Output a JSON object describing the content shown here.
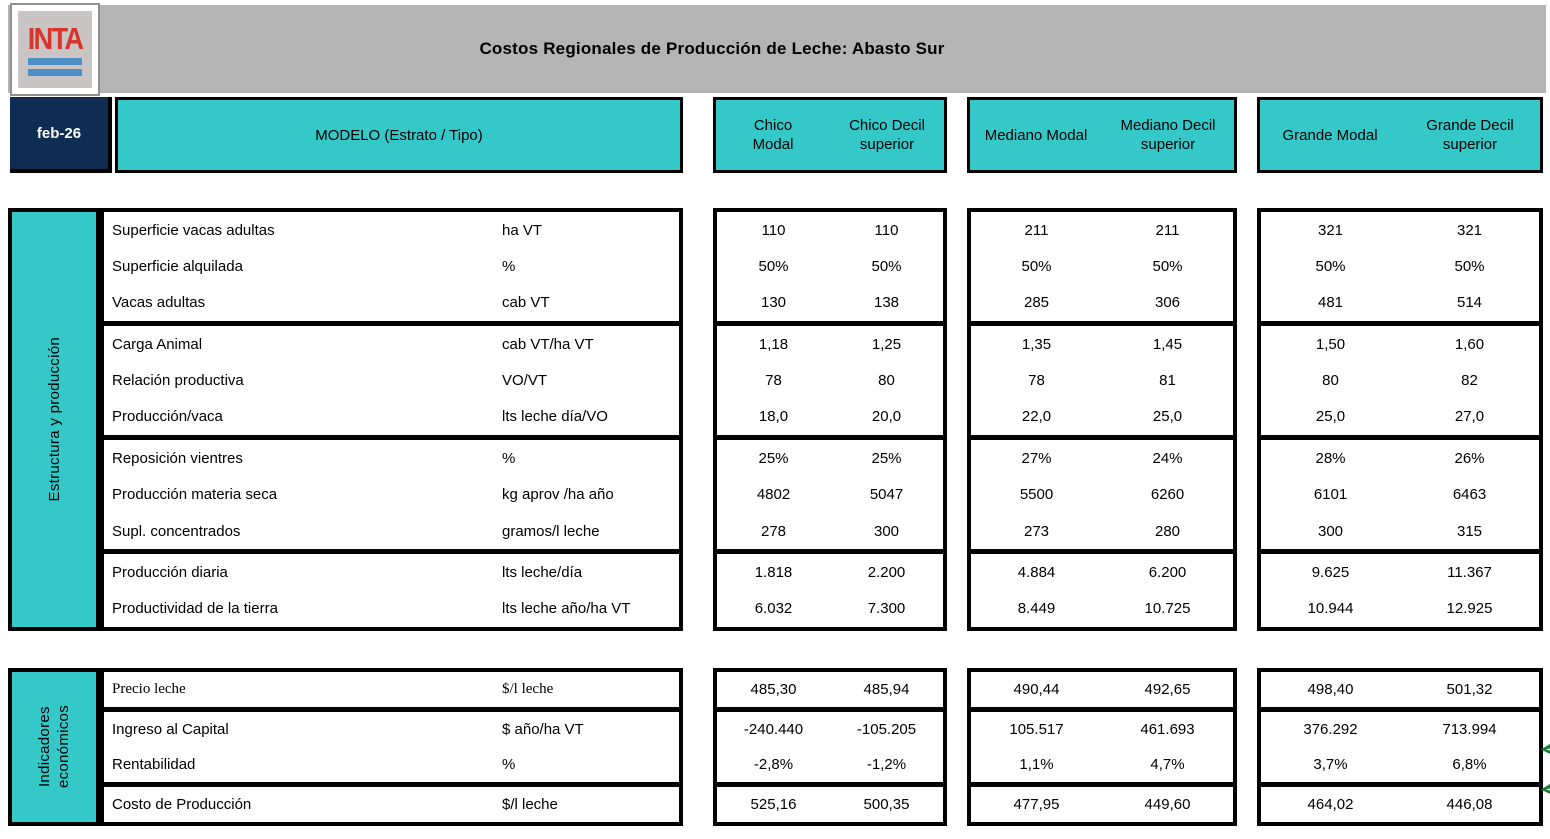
{
  "header": {
    "logo_text": "INTA",
    "title": "Costos Regionales de Producción de Leche: Abasto Sur",
    "date": "feb-26",
    "model_label": "MODELO (Estrato / Tipo)",
    "col_groups": [
      {
        "modal": "Chico Modal",
        "decil": "Chico Decil superior"
      },
      {
        "modal": "Mediano Modal",
        "decil": "Mediano Decil superior"
      },
      {
        "modal": "Grande Modal",
        "decil": "Grande Decil superior"
      }
    ]
  },
  "colors": {
    "teal": "#35c8c8",
    "navy": "#0f2d52",
    "gray_band": "#b4b4b4",
    "logo_red": "#d9342b",
    "logo_blue": "#4d8fc4",
    "green_mark": "#217a3c"
  },
  "sections": [
    {
      "title": "Estructura y producción",
      "groups": [
        {
          "rows": [
            {
              "label": "Superficie vacas adultas",
              "unit": "ha VT",
              "values": [
                "110",
                "110",
                "211",
                "211",
                "321",
                "321"
              ]
            },
            {
              "label": "Superficie alquilada",
              "unit": "%",
              "values": [
                "50%",
                "50%",
                "50%",
                "50%",
                "50%",
                "50%"
              ]
            },
            {
              "label": "Vacas adultas",
              "unit": "cab VT",
              "values": [
                "130",
                "138",
                "285",
                "306",
                "481",
                "514"
              ]
            }
          ]
        },
        {
          "rows": [
            {
              "label": "Carga Animal",
              "unit": "cab VT/ha VT",
              "values": [
                "1,18",
                "1,25",
                "1,35",
                "1,45",
                "1,50",
                "1,60"
              ]
            },
            {
              "label": "Relación productiva",
              "unit": "VO/VT",
              "values": [
                "78",
                "80",
                "78",
                "81",
                "80",
                "82"
              ]
            },
            {
              "label": "Producción/vaca",
              "unit": "lts leche día/VO",
              "values": [
                "18,0",
                "20,0",
                "22,0",
                "25,0",
                "25,0",
                "27,0"
              ]
            }
          ]
        },
        {
          "rows": [
            {
              "label": "Reposición vientres",
              "unit": "%",
              "values": [
                "25%",
                "25%",
                "27%",
                "24%",
                "28%",
                "26%"
              ]
            },
            {
              "label": "Producción materia seca",
              "unit": "kg aprov /ha año",
              "values": [
                "4802",
                "5047",
                "5500",
                "6260",
                "6101",
                "6463"
              ]
            },
            {
              "label": "Supl. concentrados",
              "unit": "gramos/l leche",
              "values": [
                "278",
                "300",
                "273",
                "280",
                "300",
                "315"
              ]
            }
          ]
        },
        {
          "rows": [
            {
              "label": "Producción diaria",
              "unit": "lts leche/día",
              "values": [
                "1.818",
                "2.200",
                "4.884",
                "6.200",
                "9.625",
                "11.367"
              ]
            },
            {
              "label": "Productividad de la tierra",
              "unit": "lts leche año/ha VT",
              "values": [
                "6.032",
                "7.300",
                "8.449",
                "10.725",
                "10.944",
                "12.925"
              ]
            }
          ]
        }
      ]
    },
    {
      "title": "Indicadores\neconómicos",
      "groups": [
        {
          "rows": [
            {
              "label": "Precio leche",
              "unit": "$/l leche",
              "serif": true,
              "values": [
                "485,30",
                "485,94",
                "490,44",
                "492,65",
                "498,40",
                "501,32"
              ]
            }
          ]
        },
        {
          "rows": [
            {
              "label": "Ingreso al Capital",
              "unit": "$ año/ha VT",
              "values": [
                "-240.440",
                "-105.205",
                "105.517",
                "461.693",
                "376.292",
                "713.994"
              ]
            },
            {
              "label": "Rentabilidad",
              "unit": "%",
              "values": [
                "-2,8%",
                "-1,2%",
                "1,1%",
                "4,7%",
                "3,7%",
                "6,8%"
              ]
            }
          ]
        },
        {
          "rows": [
            {
              "label": "Costo de Producción",
              "unit": "$/l leche",
              "values": [
                "525,16",
                "500,35",
                "477,95",
                "449,60",
                "464,02",
                "446,08"
              ]
            }
          ]
        }
      ]
    }
  ]
}
